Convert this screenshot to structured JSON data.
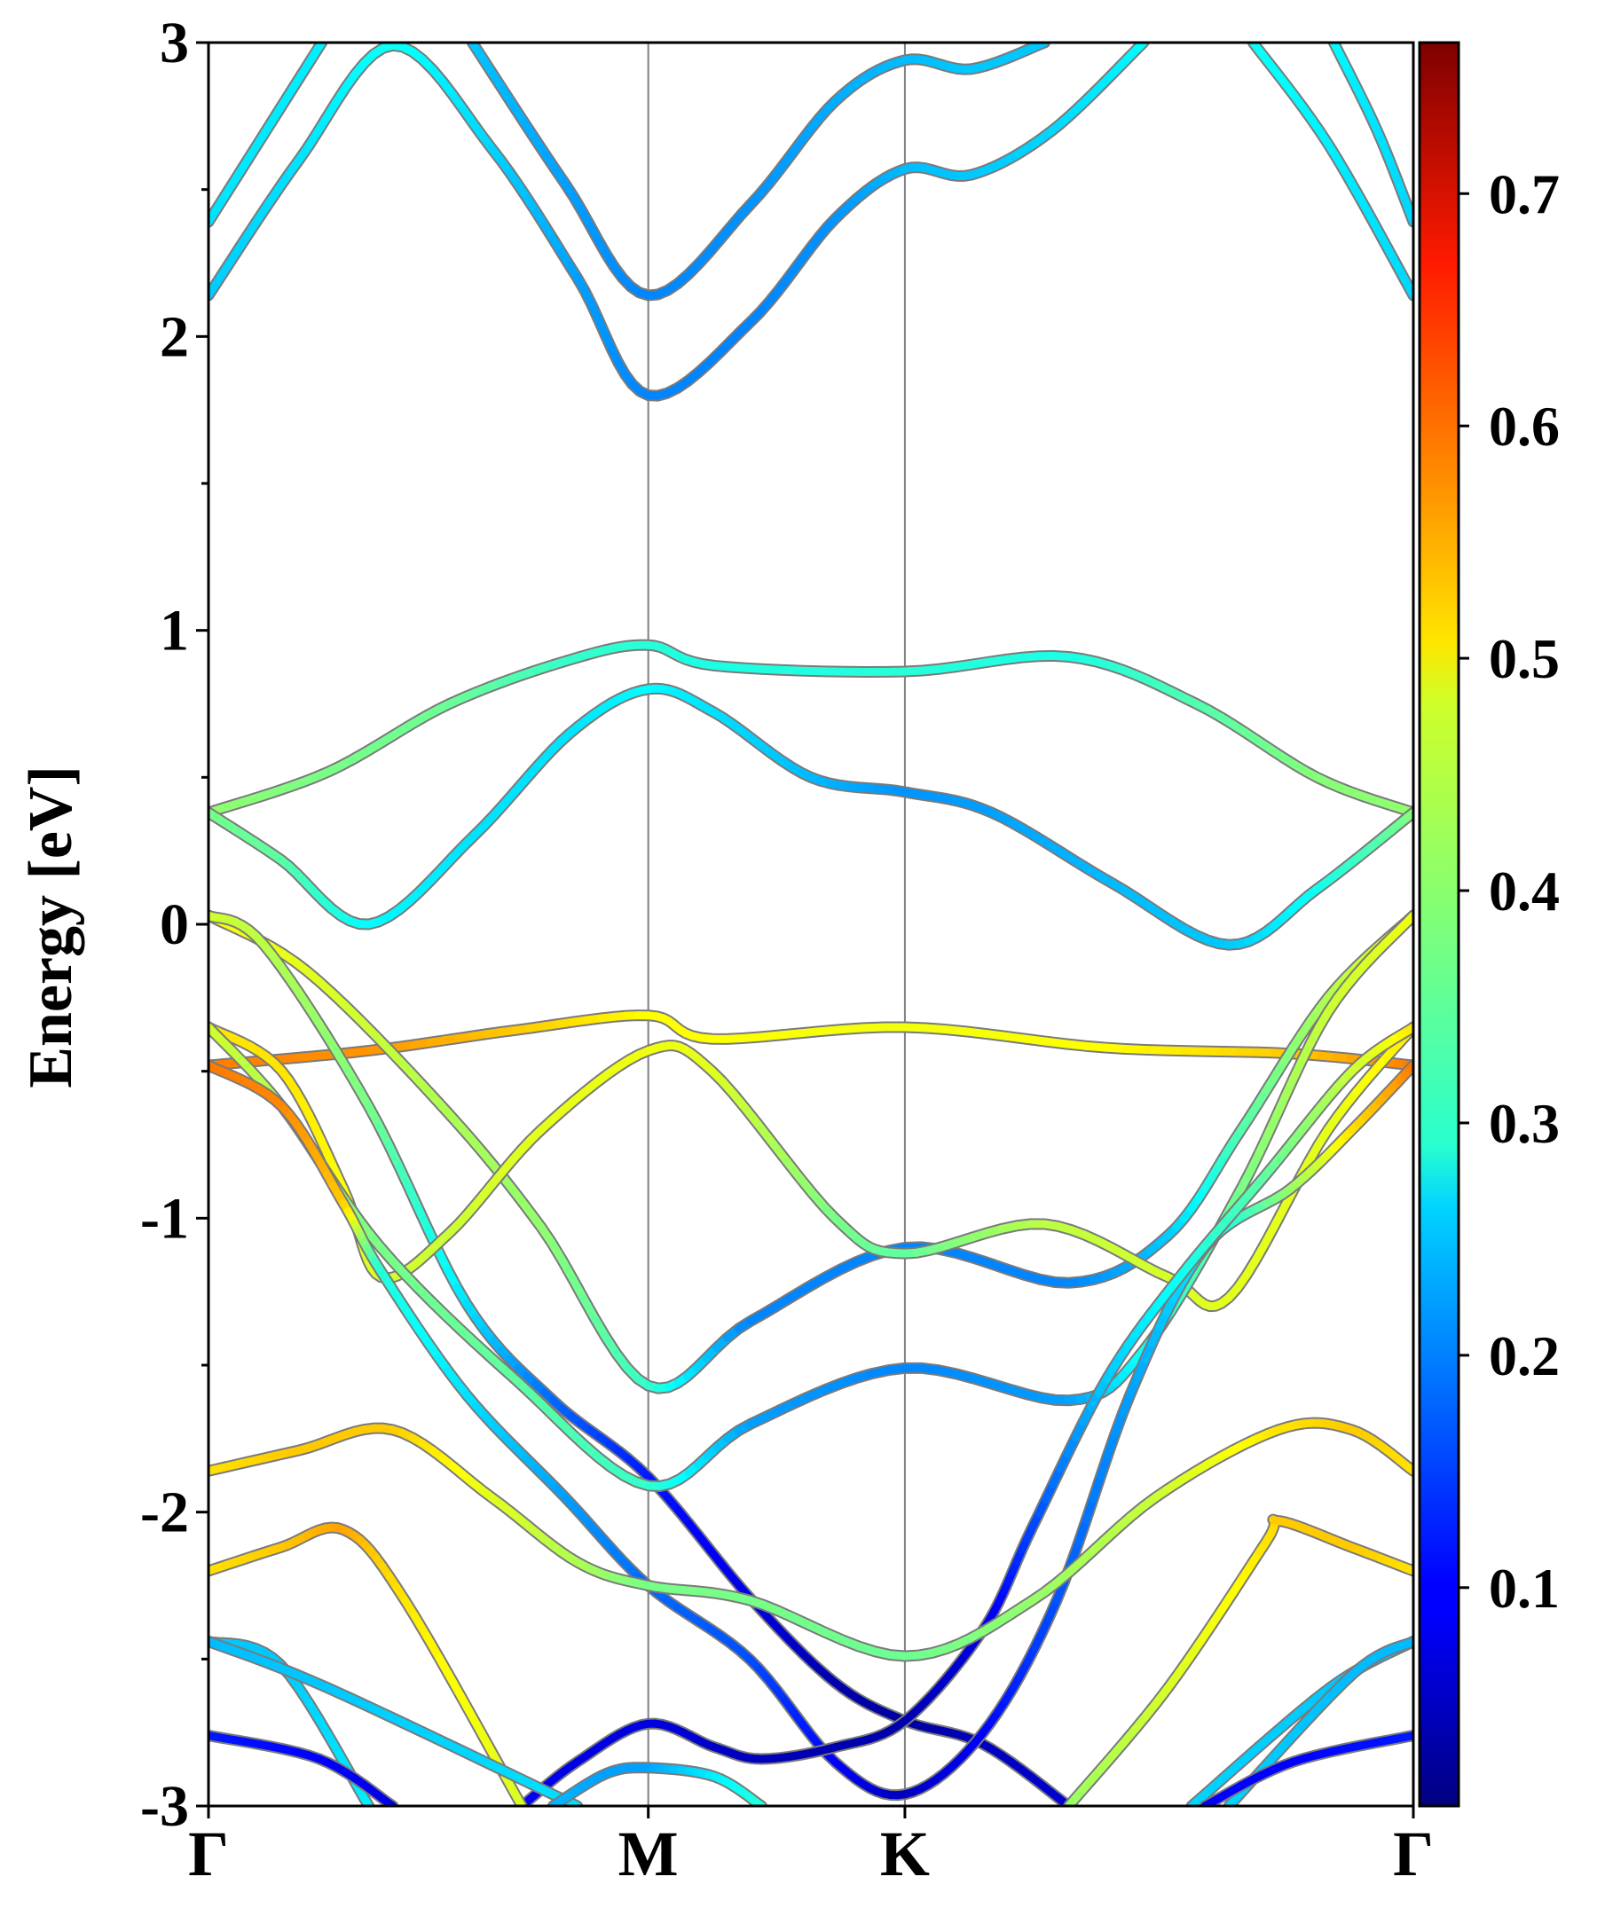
{
  "chart_data": {
    "type": "line",
    "title": "",
    "xlabel": "",
    "ylabel": "Energy [eV]",
    "ylim": [
      -3,
      3
    ],
    "yticks": [
      -3,
      -2,
      -1,
      0,
      1,
      2,
      3
    ],
    "ytick_labels": [
      "-3",
      "-2",
      "-1",
      "0",
      "1",
      "2",
      "3"
    ],
    "yminor_step": 0.5,
    "kpoints": [
      {
        "label": "Γ",
        "k": 0
      },
      {
        "label": "M",
        "k": 0.365
      },
      {
        "label": "K",
        "k": 0.578
      },
      {
        "label": "Γ",
        "k": 1.0
      }
    ],
    "colorbar": {
      "colormap": "jet",
      "range": [
        0.006,
        0.765
      ],
      "ticks": [
        0.1,
        0.2,
        0.3,
        0.4,
        0.5,
        0.6,
        0.7
      ],
      "tick_labels": [
        "0.1",
        "0.2",
        "0.3",
        "0.4",
        "0.5",
        "0.6",
        "0.7"
      ]
    },
    "series_format": "[k, energy_eV, weight]",
    "bands": [
      [
        [
          0,
          2.39,
          0.27
        ],
        [
          0.094,
          3,
          0.28
        ]
      ],
      [
        [
          0,
          2.14,
          0.25
        ],
        [
          0.075,
          2.6,
          0.27
        ],
        [
          0.153,
          2.99,
          0.3
        ],
        [
          0.235,
          2.64,
          0.26
        ],
        [
          0.306,
          2.2,
          0.22
        ],
        [
          0.365,
          1.8,
          0.2
        ],
        [
          0.45,
          2.05,
          0.2
        ],
        [
          0.52,
          2.4,
          0.21
        ],
        [
          0.578,
          2.57,
          0.24
        ],
        [
          0.633,
          2.55,
          0.25
        ],
        [
          0.7,
          2.7,
          0.26
        ],
        [
          0.776,
          3,
          0.29
        ]
      ],
      [
        [
          0.219,
          3,
          0.25
        ],
        [
          0.296,
          2.52,
          0.22
        ],
        [
          0.365,
          2.14,
          0.2
        ],
        [
          0.45,
          2.45,
          0.21
        ],
        [
          0.52,
          2.8,
          0.23
        ],
        [
          0.578,
          2.94,
          0.24
        ],
        [
          0.633,
          2.91,
          0.25
        ],
        [
          0.694,
          3,
          0.25
        ]
      ],
      [
        [
          0.867,
          3,
          0.3
        ],
        [
          0.93,
          2.65,
          0.28
        ],
        [
          1,
          2.14,
          0.26
        ]
      ],
      [
        [
          0.934,
          3,
          0.29
        ],
        [
          0.97,
          2.7,
          0.27
        ],
        [
          1,
          2.39,
          0.26
        ]
      ],
      [
        [
          0,
          0.38,
          0.4
        ],
        [
          0.1,
          0.52,
          0.38
        ],
        [
          0.2,
          0.75,
          0.37
        ],
        [
          0.3,
          0.9,
          0.33
        ],
        [
          0.365,
          0.95,
          0.32
        ],
        [
          0.42,
          0.88,
          0.31
        ],
        [
          0.578,
          0.86,
          0.32
        ],
        [
          0.714,
          0.91,
          0.31
        ],
        [
          0.82,
          0.75,
          0.35
        ],
        [
          0.92,
          0.5,
          0.39
        ],
        [
          1,
          0.38,
          0.4
        ]
      ],
      [
        [
          0,
          0.38,
          0.38
        ],
        [
          0.06,
          0.22,
          0.36
        ],
        [
          0.133,
          0.0,
          0.29
        ],
        [
          0.22,
          0.3,
          0.27
        ],
        [
          0.3,
          0.65,
          0.27
        ],
        [
          0.365,
          0.8,
          0.29
        ],
        [
          0.42,
          0.72,
          0.27
        ],
        [
          0.5,
          0.5,
          0.24
        ],
        [
          0.578,
          0.45,
          0.21
        ],
        [
          0.65,
          0.38,
          0.22
        ],
        [
          0.75,
          0.14,
          0.24
        ],
        [
          0.847,
          -0.07,
          0.25
        ],
        [
          0.92,
          0.12,
          0.3
        ],
        [
          1,
          0.38,
          0.39
        ]
      ],
      [
        [
          0,
          -0.48,
          0.58
        ],
        [
          0.133,
          -0.43,
          0.56
        ],
        [
          0.255,
          -0.36,
          0.52
        ],
        [
          0.365,
          -0.31,
          0.48
        ],
        [
          0.418,
          -0.39,
          0.48
        ],
        [
          0.578,
          -0.35,
          0.47
        ],
        [
          0.745,
          -0.42,
          0.48
        ],
        [
          0.898,
          -0.44,
          0.52
        ],
        [
          1,
          -0.48,
          0.58
        ]
      ],
      [
        [
          0,
          0.03,
          0.48
        ],
        [
          0.082,
          -0.16,
          0.46
        ],
        [
          0.194,
          -0.62,
          0.42
        ],
        [
          0.276,
          -1.03,
          0.4
        ],
        [
          0.365,
          -1.57,
          0.33
        ],
        [
          0.45,
          -1.35,
          0.2
        ],
        [
          0.578,
          -1.1,
          0.2
        ],
        [
          0.714,
          -1.22,
          0.2
        ],
        [
          0.796,
          -1.06,
          0.25
        ],
        [
          0.857,
          -0.7,
          0.35
        ],
        [
          0.929,
          -0.25,
          0.42
        ],
        [
          1,
          0.03,
          0.48
        ]
      ],
      [
        [
          0,
          0.03,
          0.45
        ],
        [
          0.046,
          -0.07,
          0.43
        ],
        [
          0.133,
          -0.62,
          0.38
        ],
        [
          0.214,
          -1.29,
          0.27
        ],
        [
          0.286,
          -1.62,
          0.18
        ],
        [
          0.365,
          -1.88,
          0.12
        ],
        [
          0.449,
          -2.29,
          0.08
        ],
        [
          0.52,
          -2.58,
          0.04
        ],
        [
          0.578,
          -2.71,
          0.03
        ],
        [
          0.643,
          -2.79,
          0.05
        ],
        [
          0.714,
          -3,
          0.07
        ]
      ],
      [
        [
          0,
          -0.35,
          0.5
        ],
        [
          0.061,
          -0.5,
          0.5
        ],
        [
          0.112,
          -0.9,
          0.48
        ],
        [
          0.143,
          -1.2,
          0.45
        ],
        [
          0.2,
          -1.05,
          0.44
        ],
        [
          0.276,
          -0.7,
          0.46
        ],
        [
          0.365,
          -0.43,
          0.47
        ],
        [
          0.418,
          -0.5,
          0.46
        ],
        [
          0.52,
          -1.0,
          0.38
        ],
        [
          0.578,
          -1.12,
          0.36
        ],
        [
          0.694,
          -1.02,
          0.43
        ],
        [
          0.796,
          -1.2,
          0.45
        ],
        [
          0.847,
          -1.27,
          0.46
        ],
        [
          0.929,
          -0.7,
          0.46
        ],
        [
          1,
          -0.35,
          0.5
        ]
      ],
      [
        [
          0,
          -0.35,
          0.45
        ],
        [
          0.061,
          -0.62,
          0.42
        ],
        [
          0.143,
          -1.1,
          0.38
        ],
        [
          0.255,
          -1.55,
          0.36
        ],
        [
          0.365,
          -1.91,
          0.33
        ],
        [
          0.45,
          -1.7,
          0.22
        ],
        [
          0.578,
          -1.51,
          0.2
        ],
        [
          0.714,
          -1.62,
          0.22
        ],
        [
          0.776,
          -1.45,
          0.3
        ],
        [
          0.857,
          -0.9,
          0.38
        ],
        [
          0.929,
          -0.3,
          0.44
        ],
        [
          1,
          0.03,
          0.47
        ]
      ],
      [
        [
          0,
          -0.48,
          0.58
        ],
        [
          0.061,
          -0.62,
          0.57
        ],
        [
          0.112,
          -0.95,
          0.52
        ],
        [
          0.143,
          -1.18,
          0.32
        ],
        [
          0.214,
          -1.6,
          0.27
        ],
        [
          0.296,
          -1.95,
          0.22
        ],
        [
          0.365,
          -2.25,
          0.18
        ],
        [
          0.449,
          -2.5,
          0.16
        ],
        [
          0.52,
          -2.85,
          0.1
        ],
        [
          0.578,
          -2.96,
          0.05
        ],
        [
          0.643,
          -2.75,
          0.1
        ],
        [
          0.704,
          -2.3,
          0.16
        ],
        [
          0.765,
          -1.6,
          0.22
        ],
        [
          0.827,
          -1.1,
          0.28
        ],
        [
          0.898,
          -0.9,
          0.4
        ],
        [
          0.949,
          -0.7,
          0.5
        ],
        [
          1,
          -0.48,
          0.58
        ]
      ],
      [
        [
          0.26,
          -3,
          0.1
        ],
        [
          0.306,
          -2.85,
          0.08
        ],
        [
          0.365,
          -2.72,
          0.08
        ],
        [
          0.42,
          -2.8,
          0.06
        ],
        [
          0.459,
          -2.84,
          0.05
        ],
        [
          0.52,
          -2.8,
          0.04
        ],
        [
          0.578,
          -2.71,
          0.04
        ],
        [
          0.643,
          -2.4,
          0.08
        ],
        [
          0.684,
          -2.05,
          0.15
        ],
        [
          0.745,
          -1.55,
          0.25
        ],
        [
          0.806,
          -1.2,
          0.3
        ],
        [
          0.878,
          -0.85,
          0.36
        ],
        [
          0.949,
          -0.5,
          0.44
        ],
        [
          1,
          -0.35,
          0.5
        ]
      ],
      [
        [
          0,
          -1.86,
          0.5
        ],
        [
          0.075,
          -1.79,
          0.52
        ],
        [
          0.153,
          -1.72,
          0.52
        ],
        [
          0.235,
          -1.95,
          0.46
        ],
        [
          0.306,
          -2.17,
          0.42
        ],
        [
          0.365,
          -2.25,
          0.38
        ],
        [
          0.449,
          -2.3,
          0.38
        ],
        [
          0.578,
          -2.49,
          0.37
        ],
        [
          0.684,
          -2.3,
          0.4
        ],
        [
          0.786,
          -1.95,
          0.44
        ],
        [
          0.888,
          -1.72,
          0.5
        ],
        [
          0.949,
          -1.72,
          0.52
        ],
        [
          1,
          -1.86,
          0.5
        ]
      ],
      [
        [
          0,
          -2.2,
          0.5
        ],
        [
          0.06,
          -2.12,
          0.52
        ],
        [
          0.112,
          -2.06,
          0.55
        ],
        [
          0.163,
          -2.3,
          0.5
        ],
        [
          0.26,
          -3,
          0.45
        ]
      ],
      [
        [
          0.714,
          -3,
          0.4
        ],
        [
          0.796,
          -2.6,
          0.45
        ],
        [
          0.878,
          -2.1,
          0.5
        ],
        [
          0.888,
          -2.03,
          0.52
        ],
        [
          0.949,
          -2.12,
          0.52
        ],
        [
          1,
          -2.2,
          0.5
        ]
      ],
      [
        [
          0,
          -2.44,
          0.25
        ],
        [
          0.06,
          -2.52,
          0.25
        ],
        [
          0.133,
          -3,
          0.28
        ]
      ],
      [
        [
          0,
          -2.44,
          0.24
        ],
        [
          0.1,
          -2.6,
          0.25
        ],
        [
          0.306,
          -3,
          0.27
        ]
      ],
      [
        [
          0,
          -2.76,
          0.12
        ],
        [
          0.092,
          -2.84,
          0.1
        ],
        [
          0.153,
          -3,
          0.08
        ]
      ],
      [
        [
          0.286,
          -3,
          0.24
        ],
        [
          0.33,
          -2.89,
          0.22
        ],
        [
          0.365,
          -2.87,
          0.22
        ],
        [
          0.42,
          -2.9,
          0.28
        ],
        [
          0.459,
          -3,
          0.32
        ]
      ],
      [
        [
          0.816,
          -3,
          0.26
        ],
        [
          0.93,
          -2.6,
          0.25
        ],
        [
          1,
          -2.44,
          0.24
        ]
      ],
      [
        [
          0.847,
          -3,
          0.26
        ],
        [
          0.95,
          -2.55,
          0.24
        ],
        [
          1,
          -2.44,
          0.24
        ]
      ],
      [
        [
          0.827,
          -3,
          0.1
        ],
        [
          0.9,
          -2.85,
          0.1
        ],
        [
          1,
          -2.76,
          0.12
        ]
      ]
    ]
  }
}
